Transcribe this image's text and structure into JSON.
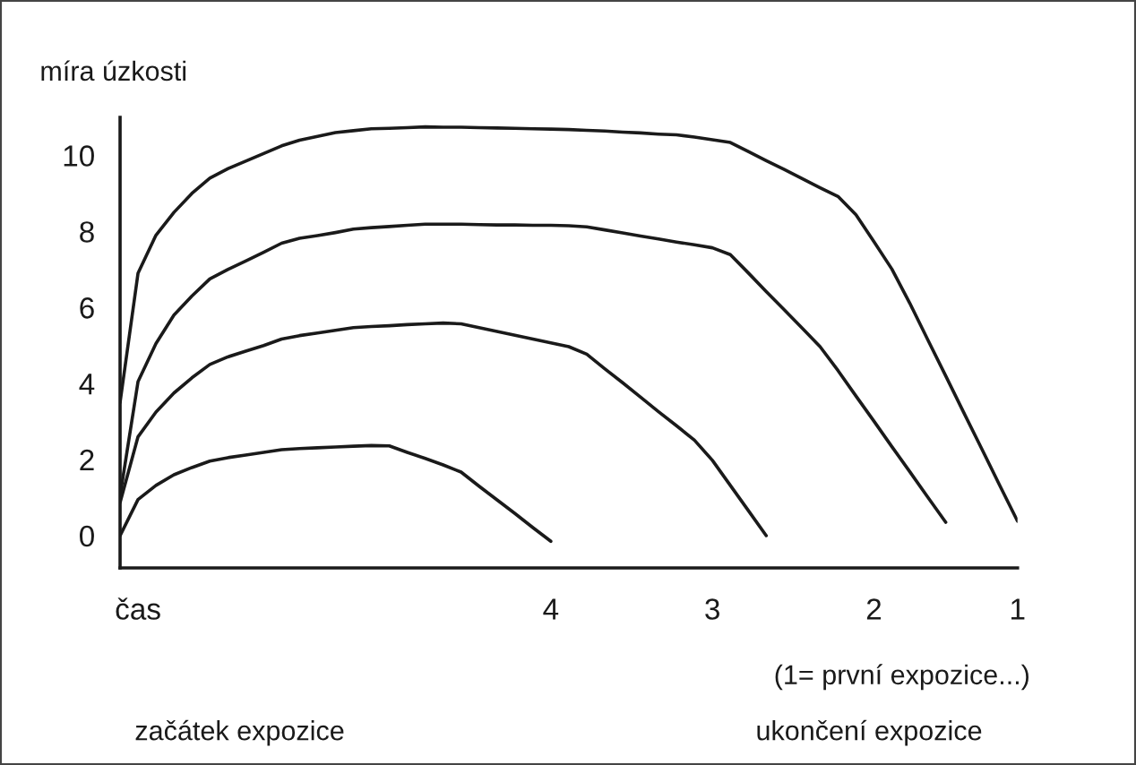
{
  "chart_data": {
    "type": "line",
    "ylabel": "míra úzkosti",
    "annotations": [
      "(1= první expozice...)",
      "začátek expozice",
      "ukončení expozice"
    ],
    "categories": [
      null,
      "čas",
      null,
      null,
      null,
      null,
      null,
      null,
      null,
      null,
      null,
      null,
      null,
      null,
      null,
      null,
      null,
      null,
      null,
      null,
      null,
      null,
      null,
      null,
      "4",
      null,
      null,
      null,
      null,
      null,
      null,
      null,
      null,
      "3",
      null,
      null,
      null,
      null,
      null,
      null,
      null,
      null,
      "2",
      null,
      null,
      null,
      null,
      null,
      null,
      null,
      "1"
    ],
    "series": [
      {
        "color": "#1a1a1a",
        "values": [
          3.5,
          6.9,
          7.9,
          8.5,
          9.0,
          9.4,
          9.65,
          9.85,
          10.05,
          10.25,
          10.4,
          10.5,
          10.6,
          10.65,
          10.7,
          10.71,
          10.73,
          10.75,
          10.74,
          10.74,
          10.73,
          10.72,
          10.71,
          10.7,
          10.69,
          10.68,
          10.66,
          10.64,
          10.61,
          10.59,
          10.56,
          10.54,
          10.48,
          10.41,
          10.34,
          10.1,
          9.86,
          9.63,
          9.39,
          9.15,
          8.92,
          8.44,
          7.73,
          7.01,
          6.11,
          5.15,
          4.2,
          3.24,
          2.29,
          1.33,
          0.38
        ]
      },
      {
        "color": "#1a1a1a",
        "values": [
          1.05,
          4.05,
          5.05,
          5.8,
          6.3,
          6.75,
          7.0,
          7.22,
          7.45,
          7.69,
          7.82,
          7.89,
          7.97,
          8.06,
          8.1,
          8.13,
          8.16,
          8.19,
          8.19,
          8.19,
          8.18,
          8.17,
          8.17,
          8.16,
          8.16,
          8.15,
          8.12,
          8.04,
          7.96,
          7.88,
          7.8,
          7.72,
          7.65,
          7.57,
          7.39,
          6.91,
          6.42,
          5.94,
          5.46,
          4.97,
          4.34,
          3.67,
          3.01,
          2.34,
          1.68,
          1.01,
          0.35,
          null,
          null,
          null,
          null
        ]
      },
      {
        "color": "#1a1a1a",
        "values": [
          0.87,
          2.6,
          3.25,
          3.75,
          4.15,
          4.5,
          4.7,
          4.85,
          5.0,
          5.17,
          5.26,
          5.33,
          5.4,
          5.47,
          5.5,
          5.52,
          5.55,
          5.57,
          5.59,
          5.57,
          5.47,
          5.37,
          5.27,
          5.17,
          5.07,
          4.97,
          4.77,
          4.39,
          4.02,
          3.64,
          3.26,
          2.89,
          2.51,
          1.98,
          1.32,
          0.66,
          0.0,
          null,
          null,
          null,
          null,
          null,
          null,
          null,
          null,
          null,
          null,
          null,
          null,
          null,
          null
        ]
      },
      {
        "color": "#1a1a1a",
        "values": [
          0,
          0.95,
          1.32,
          1.6,
          1.79,
          1.96,
          2.05,
          2.12,
          2.19,
          2.26,
          2.29,
          2.31,
          2.33,
          2.35,
          2.37,
          2.36,
          2.19,
          2.03,
          1.86,
          1.67,
          1.3,
          0.94,
          0.58,
          0.21,
          -0.15,
          null,
          null,
          null,
          null,
          null,
          null,
          null,
          null,
          null,
          null,
          null,
          null,
          null,
          null,
          null,
          null,
          null,
          null,
          null,
          null,
          null,
          null,
          null,
          null,
          null,
          null
        ]
      }
    ],
    "ylim": [
      -0.85,
      11
    ],
    "yticks": [
      0,
      2,
      4,
      6,
      8,
      10
    ],
    "grid": false,
    "legend": false,
    "marker": "none",
    "line_style": "solid"
  }
}
